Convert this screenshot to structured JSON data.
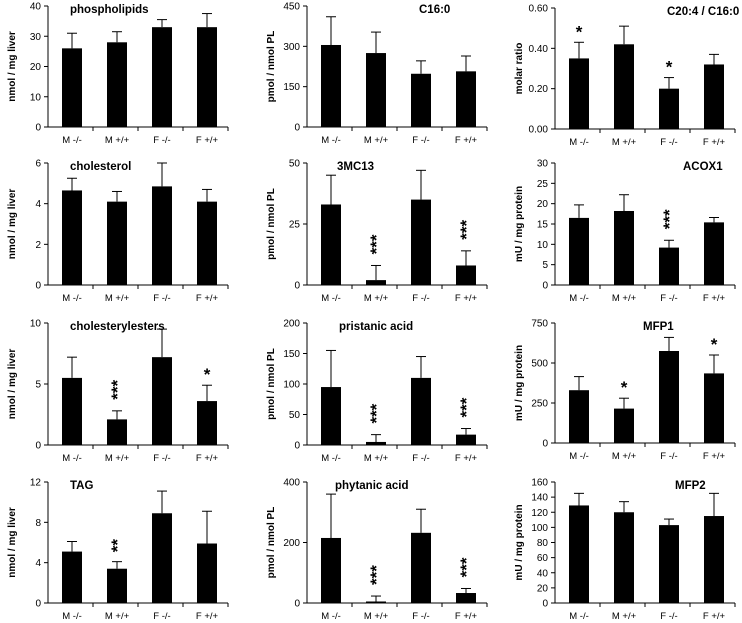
{
  "categories": [
    "M -/-",
    "M +/+",
    "F -/-",
    "F +/+"
  ],
  "chart_data": [
    {
      "type": "bar",
      "title": "phospholipids",
      "ylabel": "nmol / mg liver",
      "ylim": [
        0,
        40
      ],
      "yticks": [
        "0",
        "10",
        "20",
        "30",
        "40"
      ],
      "values": [
        26,
        28,
        33,
        33
      ],
      "errors": [
        5,
        3.5,
        2.5,
        4.5
      ],
      "significance": [
        "",
        "",
        "",
        ""
      ]
    },
    {
      "type": "bar",
      "title": "C16:0",
      "ylabel": "pmol / nmol PL",
      "ylim": [
        0,
        450
      ],
      "yticks": [
        "0",
        "150",
        "300",
        "450"
      ],
      "values": [
        305,
        275,
        198,
        207
      ],
      "errors": [
        105,
        78,
        48,
        57
      ],
      "significance": [
        "",
        "",
        "",
        ""
      ]
    },
    {
      "type": "bar",
      "title": "C20:4 / C16:0",
      "ylabel": "molar ratio",
      "ylim": [
        0,
        0.6
      ],
      "yticks": [
        "0.00",
        "0.20",
        "0.40",
        "0.60"
      ],
      "values": [
        0.35,
        0.42,
        0.2,
        0.32
      ],
      "errors": [
        0.08,
        0.09,
        0.055,
        0.05
      ],
      "significance": [
        "*",
        "",
        "*",
        ""
      ]
    },
    {
      "type": "bar",
      "title": "cholesterol",
      "ylabel": "nmol / mg liver",
      "ylim": [
        0,
        6
      ],
      "yticks": [
        "0",
        "2",
        "4",
        "6"
      ],
      "values": [
        4.65,
        4.1,
        4.85,
        4.1
      ],
      "errors": [
        0.6,
        0.5,
        1.2,
        0.6
      ],
      "significance": [
        "",
        "",
        "",
        ""
      ]
    },
    {
      "type": "bar",
      "title": "3MC13",
      "ylabel": "pmol / nmol PL",
      "ylim": [
        0,
        50
      ],
      "yticks": [
        "0",
        "25",
        "50"
      ],
      "values": [
        33,
        2,
        35,
        8
      ],
      "errors": [
        12,
        6,
        12,
        6
      ],
      "significance": [
        "",
        "***",
        "",
        "***"
      ]
    },
    {
      "type": "bar",
      "title": "ACOX1",
      "ylabel": "mU / mg protein",
      "ylim": [
        0,
        30
      ],
      "yticks": [
        "0",
        "5",
        "10",
        "15",
        "20",
        "25",
        "30"
      ],
      "values": [
        16.5,
        18.2,
        9.2,
        15.4
      ],
      "errors": [
        3.2,
        4,
        1.8,
        1.2
      ],
      "significance": [
        "",
        "",
        "***",
        ""
      ]
    },
    {
      "type": "bar",
      "title": "cholesterylesters",
      "ylabel": "nmol / mg liver",
      "ylim": [
        0,
        10
      ],
      "yticks": [
        "0",
        "5",
        "10"
      ],
      "values": [
        5.5,
        2.1,
        7.2,
        3.6
      ],
      "errors": [
        1.7,
        0.7,
        2.3,
        1.3
      ],
      "significance": [
        "",
        "***",
        "",
        "*"
      ]
    },
    {
      "type": "bar",
      "title": "pristanic acid",
      "ylabel": "pmol / nmol PL",
      "ylim": [
        0,
        200
      ],
      "yticks": [
        "0",
        "50",
        "100",
        "150",
        "200"
      ],
      "values": [
        95,
        5,
        110,
        17
      ],
      "errors": [
        60,
        12,
        35,
        10
      ],
      "significance": [
        "",
        "***",
        "",
        "***"
      ]
    },
    {
      "type": "bar",
      "title": "MFP1",
      "ylabel": "mU / mg protein",
      "ylim": [
        0,
        750
      ],
      "yticks": [
        "0",
        "250",
        "500",
        "750"
      ],
      "values": [
        330,
        215,
        575,
        435
      ],
      "errors": [
        85,
        65,
        85,
        115
      ],
      "significance": [
        "",
        "*",
        "",
        "*"
      ]
    },
    {
      "type": "bar",
      "title": "TAG",
      "ylabel": "nmol / mg liver",
      "ylim": [
        0,
        12
      ],
      "yticks": [
        "0",
        "4",
        "8",
        "12"
      ],
      "values": [
        5.1,
        3.4,
        8.9,
        5.9
      ],
      "errors": [
        1,
        0.7,
        2.2,
        3.2
      ],
      "significance": [
        "",
        "**",
        "",
        ""
      ]
    },
    {
      "type": "bar",
      "title": "phytanic acid",
      "ylabel": "pmol / nmol PL",
      "ylim": [
        0,
        400
      ],
      "yticks": [
        "0",
        "200",
        "400"
      ],
      "values": [
        215,
        5,
        232,
        33
      ],
      "errors": [
        145,
        18,
        78,
        15
      ],
      "significance": [
        "",
        "***",
        "",
        "***"
      ]
    },
    {
      "type": "bar",
      "title": "MFP2",
      "ylabel": "mU / mg protein",
      "ylim": [
        0,
        160
      ],
      "yticks": [
        "0",
        "20",
        "40",
        "60",
        "80",
        "100",
        "120",
        "140",
        "160"
      ],
      "values": [
        129,
        120,
        103,
        115
      ],
      "errors": [
        16,
        14,
        8,
        30
      ],
      "significance": [
        "",
        "",
        "",
        ""
      ]
    }
  ]
}
